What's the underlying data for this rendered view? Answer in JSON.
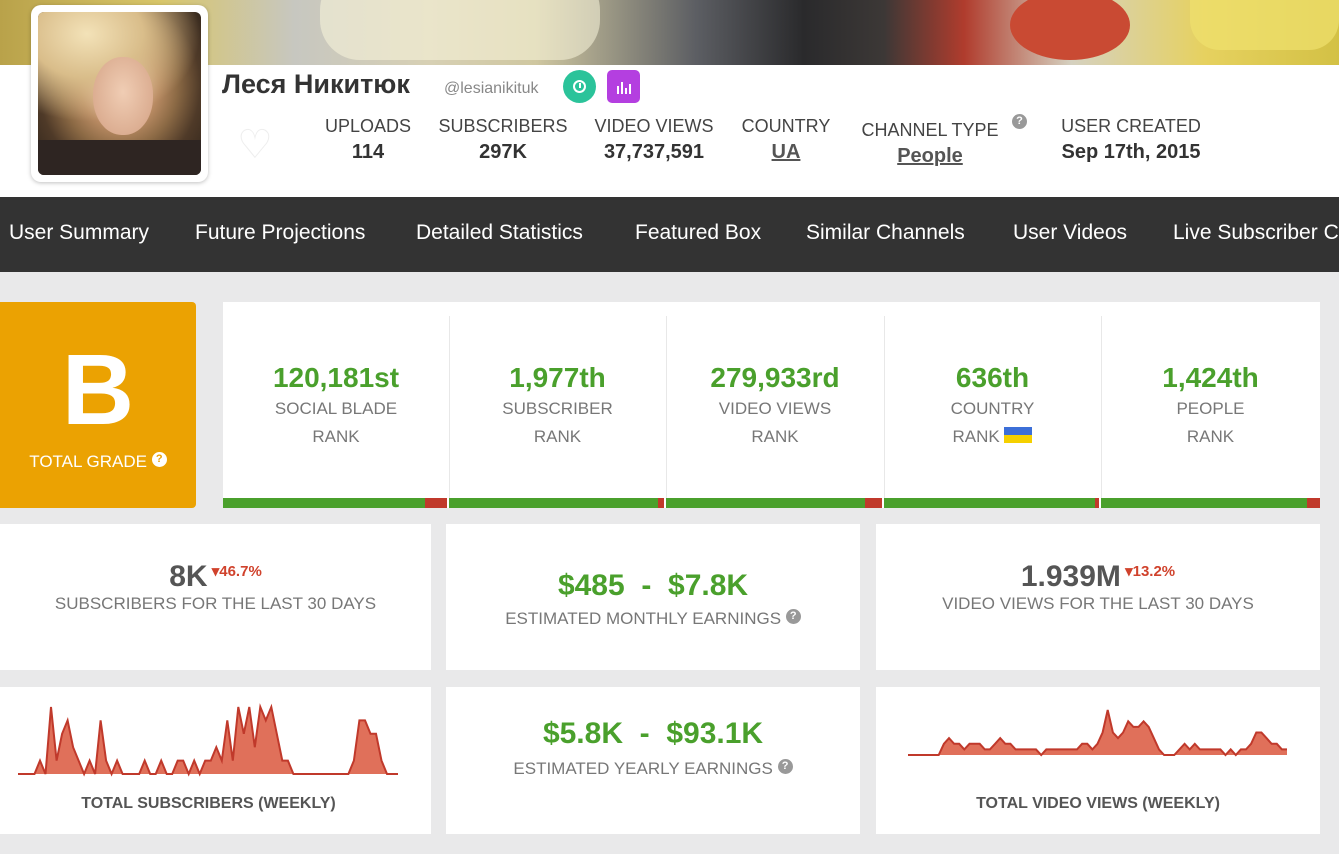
{
  "profile": {
    "name": "Леся Никитюк",
    "handle": "@lesianikituk",
    "stats": [
      {
        "label": "UPLOADS",
        "value": "114"
      },
      {
        "label": "SUBSCRIBERS",
        "value": "297K"
      },
      {
        "label": "VIDEO VIEWS",
        "value": "37,737,591"
      },
      {
        "label": "COUNTRY",
        "value": "UA"
      },
      {
        "label": "CHANNEL TYPE",
        "value": "People"
      },
      {
        "label": "USER CREATED",
        "value": "Sep 17th, 2015"
      }
    ]
  },
  "nav": [
    "User Summary",
    "Future Projections",
    "Detailed Statistics",
    "Featured Box",
    "Similar Channels",
    "User Videos",
    "Live Subscriber C"
  ],
  "grade": {
    "letter": "B",
    "label": "TOTAL GRADE",
    "color": "#eba202"
  },
  "ranks": [
    {
      "value": "120,181st",
      "line1": "SOCIAL BLADE",
      "line2": "RANK",
      "fill": 0.9
    },
    {
      "value": "1,977th",
      "line1": "SUBSCRIBER",
      "line2": "RANK",
      "fill": 0.97
    },
    {
      "value": "279,933rd",
      "line1": "VIDEO VIEWS",
      "line2": "RANK",
      "fill": 0.92
    },
    {
      "value": "636th",
      "line1": "COUNTRY",
      "line2": "RANK",
      "fill": 0.98
    },
    {
      "value": "1,424th",
      "line1": "PEOPLE",
      "line2": "RANK",
      "fill": 0.94
    }
  ],
  "summary": {
    "subs30": {
      "value": "8K",
      "change": "46.7%",
      "label": "SUBSCRIBERS FOR THE LAST 30 DAYS"
    },
    "monthly": {
      "value": "$485  -  $7.8K",
      "label": "ESTIMATED MONTHLY EARNINGS"
    },
    "views30": {
      "value": "1.939M",
      "change": "13.2%",
      "label": "VIDEO VIEWS FOR THE LAST 30 DAYS"
    },
    "yearly": {
      "value": "$5.8K  -  $93.1K",
      "label": "ESTIMATED YEARLY EARNINGS"
    },
    "subs_chart_label": "TOTAL SUBSCRIBERS (WEEKLY)",
    "views_chart_label": "TOTAL VIDEO VIEWS (WEEKLY)"
  },
  "colors": {
    "accent_green": "#4aa02c",
    "decline_red": "#d0422c",
    "nav_bg": "#333333",
    "spark_fill": "#e0705a"
  },
  "chart_data": [
    {
      "type": "area",
      "title": "TOTAL SUBSCRIBERS (WEEKLY)",
      "values": [
        0,
        0,
        0,
        0,
        1,
        0,
        5,
        1,
        3,
        4,
        2,
        1,
        0,
        1,
        0,
        4,
        1,
        0,
        1,
        0,
        0,
        0,
        0,
        1,
        0,
        0,
        1,
        0,
        0,
        1,
        1,
        0,
        1,
        0,
        1,
        1,
        2,
        1,
        4,
        1,
        5,
        3,
        5,
        2,
        5,
        4,
        5,
        3,
        1,
        1,
        0,
        0,
        0,
        0,
        0,
        0,
        0,
        0,
        0,
        0,
        0,
        1,
        4,
        4,
        3,
        3,
        1,
        0,
        0,
        0
      ]
    },
    {
      "type": "area",
      "title": "TOTAL VIDEO VIEWS (WEEKLY)",
      "values": [
        0,
        0,
        0,
        0,
        0,
        0,
        0,
        2,
        3,
        2,
        2,
        1,
        2,
        2,
        2,
        1,
        1,
        2,
        3,
        2,
        2,
        1,
        1,
        1,
        1,
        1,
        0,
        1,
        1,
        1,
        1,
        1,
        1,
        1,
        2,
        2,
        1,
        2,
        4,
        8,
        4,
        3,
        4,
        6,
        5,
        5,
        6,
        5,
        3,
        1,
        0,
        0,
        0,
        1,
        2,
        1,
        2,
        1,
        1,
        1,
        1,
        1,
        0,
        1,
        0,
        1,
        1,
        2,
        4,
        4,
        3,
        2,
        2,
        1,
        1
      ]
    }
  ]
}
